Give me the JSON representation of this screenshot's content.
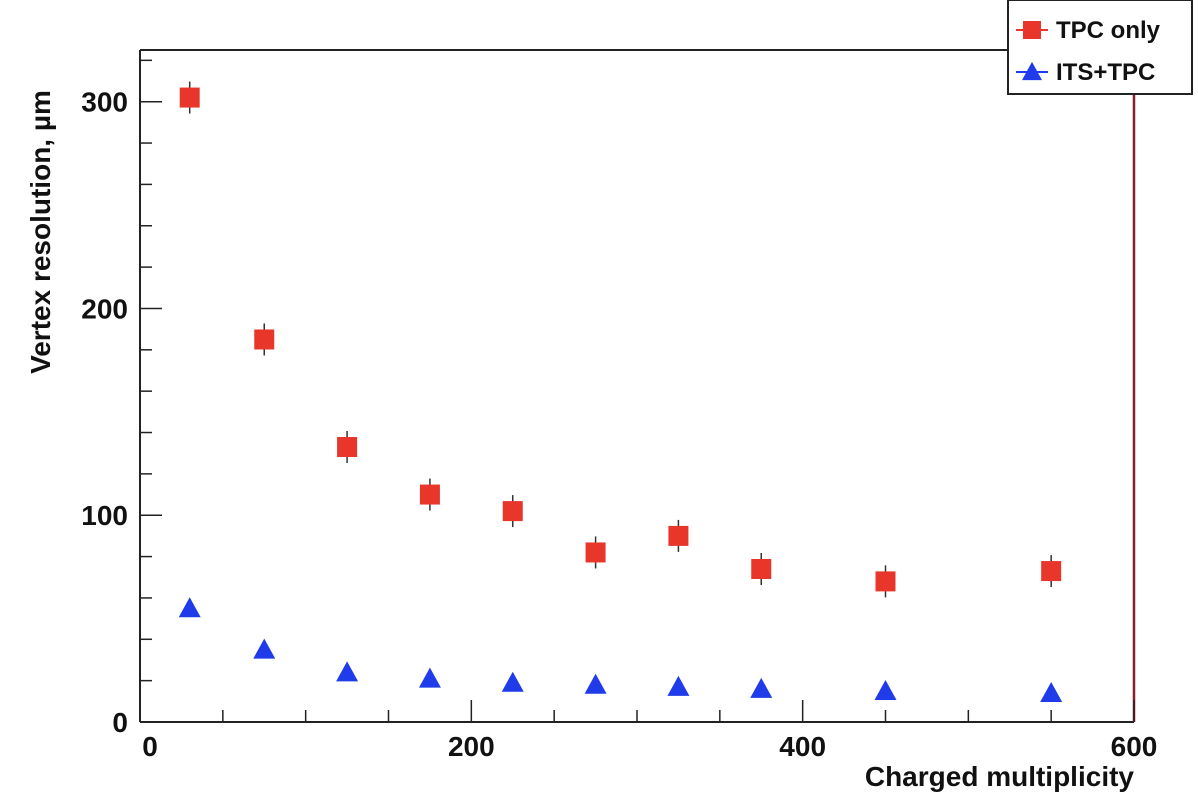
{
  "chart_data": {
    "type": "scatter",
    "title": "",
    "xlabel": "Charged multiplicity",
    "ylabel": "Vertex resolution, µm",
    "xlim": [
      0,
      600
    ],
    "ylim": [
      0,
      325
    ],
    "x_ticks": [
      0,
      200,
      400,
      600
    ],
    "y_ticks": [
      0,
      100,
      200,
      300
    ],
    "grid": false,
    "legend_position": "top-right",
    "series": [
      {
        "name": "TPC only",
        "marker": "square",
        "color": "#e8372a",
        "x": [
          30,
          75,
          125,
          175,
          225,
          275,
          325,
          375,
          450,
          550
        ],
        "y": [
          302,
          185,
          133,
          110,
          102,
          82,
          90,
          74,
          68,
          73
        ]
      },
      {
        "name": "ITS+TPC",
        "marker": "triangle",
        "color": "#1f3bea",
        "x": [
          30,
          75,
          125,
          175,
          225,
          275,
          325,
          375,
          450,
          550
        ],
        "y": [
          55,
          35,
          24,
          21,
          19,
          18,
          17,
          16,
          15,
          14
        ]
      }
    ]
  }
}
